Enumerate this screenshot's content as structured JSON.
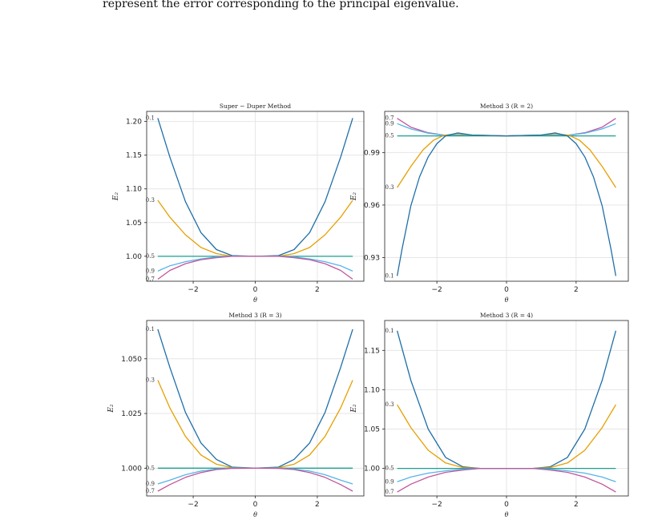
{
  "caption_text": "represent the error corresponding to the principal eigenvalue.",
  "colors": {
    "0.1": "#1f6fa8",
    "0.3": "#e69f00",
    "0.5": "#1aa08f",
    "0.7": "#c2569b",
    "0.9": "#56b4e9"
  },
  "chart_data": [
    {
      "type": "line",
      "title": "Super − Duper Method",
      "xlabel": "θ",
      "ylabel": "E₂",
      "xlim": [
        -3.5,
        3.5
      ],
      "ylim": [
        0.963,
        1.215
      ],
      "xticks": [
        -2,
        0,
        2
      ],
      "xtick_labels": [
        "−2",
        "0",
        "2"
      ],
      "yticks": [
        1.0,
        1.05,
        1.1,
        1.15,
        1.2
      ],
      "ytick_labels": [
        "1.00",
        "1.05",
        "1.10",
        "1.15",
        "1.20"
      ],
      "grid": true,
      "series": [
        {
          "name": "0.1",
          "color_key": "0.1",
          "x": [
            -3.14,
            -2.75,
            -2.25,
            -1.75,
            -1.25,
            -0.75,
            0,
            0.75,
            1.25,
            1.75,
            2.25,
            2.75,
            3.14
          ],
          "y": [
            1.205,
            1.147,
            1.081,
            1.035,
            1.01,
            1.001,
            1.0,
            1.001,
            1.01,
            1.035,
            1.081,
            1.147,
            1.205
          ]
        },
        {
          "name": "0.3",
          "color_key": "0.3",
          "x": [
            -3.14,
            -2.75,
            -2.25,
            -1.75,
            -1.25,
            -0.75,
            0,
            0.75,
            1.25,
            1.75,
            2.25,
            2.75,
            3.14
          ],
          "y": [
            1.083,
            1.058,
            1.032,
            1.013,
            1.004,
            1.0,
            1.0,
            1.0,
            1.004,
            1.013,
            1.032,
            1.058,
            1.083
          ]
        },
        {
          "name": "0.5",
          "color_key": "0.5",
          "x": [
            -3.14,
            0,
            3.14
          ],
          "y": [
            1.0,
            1.0,
            1.0
          ]
        },
        {
          "name": "0.9",
          "color_key": "0.9",
          "x": [
            -3.14,
            -2.75,
            -2.25,
            -1.75,
            -1.25,
            -0.75,
            0,
            0.75,
            1.25,
            1.75,
            2.25,
            2.75,
            3.14
          ],
          "y": [
            0.978,
            0.986,
            0.992,
            0.996,
            0.999,
            1.0,
            1.0,
            1.0,
            0.999,
            0.996,
            0.992,
            0.986,
            0.978
          ]
        },
        {
          "name": "0.7",
          "color_key": "0.7",
          "x": [
            -3.14,
            -2.75,
            -2.25,
            -1.75,
            -1.25,
            -0.75,
            0,
            0.75,
            1.25,
            1.75,
            2.25,
            2.75,
            3.14
          ],
          "y": [
            0.966,
            0.979,
            0.989,
            0.995,
            0.998,
            1.0,
            1.0,
            1.0,
            0.998,
            0.995,
            0.989,
            0.979,
            0.966
          ]
        }
      ]
    },
    {
      "type": "line",
      "title": "Method 3 (R = 2)",
      "xlabel": "θ",
      "ylabel": "E₂",
      "xlim": [
        -3.5,
        3.5
      ],
      "ylim": [
        0.9165,
        1.0135
      ],
      "xticks": [
        -2,
        0,
        2
      ],
      "xtick_labels": [
        "−2",
        "0",
        "2"
      ],
      "yticks": [
        0.93,
        0.96,
        0.99
      ],
      "ytick_labels": [
        "0.93",
        "0.96",
        "0.99"
      ],
      "grid": true,
      "series": [
        {
          "name": "0.7",
          "color_key": "0.7",
          "x": [
            -3.14,
            -2.75,
            -2.25,
            -1.75,
            -1.4,
            -1.0,
            0,
            1.0,
            1.4,
            1.75,
            2.25,
            2.75,
            3.14
          ],
          "y": [
            1.0095,
            1.0045,
            1.0013,
            0.9998,
            1.0,
            0.9998,
            0.9995,
            0.9998,
            1.0,
            0.9998,
            1.0013,
            1.0045,
            1.0095
          ]
        },
        {
          "name": "0.9",
          "color_key": "0.9",
          "x": [
            -3.14,
            -2.75,
            -2.25,
            -1.75,
            -1.4,
            -1.0,
            0,
            1.0,
            1.4,
            1.75,
            2.25,
            2.75,
            3.14
          ],
          "y": [
            1.0065,
            1.0035,
            1.001,
            0.9998,
            0.9999,
            0.9997,
            0.9995,
            0.9997,
            0.9999,
            0.9998,
            1.001,
            1.0035,
            1.0065
          ]
        },
        {
          "name": "0.5",
          "color_key": "0.5",
          "x": [
            -3.14,
            0,
            3.14
          ],
          "y": [
            0.9995,
            0.9995,
            0.9995
          ]
        },
        {
          "name": "0.3",
          "color_key": "0.3",
          "x": [
            -3.14,
            -2.75,
            -2.4,
            -2.1,
            -1.8,
            -1.4,
            -1.0,
            0,
            1.0,
            1.4,
            1.8,
            2.1,
            2.4,
            2.75,
            3.14
          ],
          "y": [
            0.97,
            0.982,
            0.9915,
            0.997,
            0.9998,
            1.0008,
            1.0,
            0.9995,
            1.0,
            1.0008,
            0.9998,
            0.997,
            0.9915,
            0.982,
            0.97
          ]
        },
        {
          "name": "0.1",
          "color_key": "0.1",
          "x": [
            -3.14,
            -3.0,
            -2.75,
            -2.5,
            -2.25,
            -2.0,
            -1.75,
            -1.4,
            -1.0,
            0,
            1.0,
            1.4,
            1.75,
            2.0,
            2.25,
            2.5,
            2.75,
            3.0,
            3.14
          ],
          "y": [
            0.9195,
            0.935,
            0.9595,
            0.976,
            0.9875,
            0.995,
            0.9995,
            1.0012,
            1.0,
            0.9995,
            1.0,
            1.0012,
            0.9995,
            0.995,
            0.9875,
            0.976,
            0.9595,
            0.935,
            0.9195
          ]
        }
      ]
    },
    {
      "type": "line",
      "title": "Method 3 (R = 3)",
      "xlabel": "θ",
      "ylabel": "E₂",
      "xlim": [
        -3.5,
        3.5
      ],
      "ylim": [
        0.9873,
        1.0675
      ],
      "xticks": [
        -2,
        0,
        2
      ],
      "xtick_labels": [
        "−2",
        "0",
        "2"
      ],
      "yticks": [
        1.0,
        1.025,
        1.05
      ],
      "ytick_labels": [
        "1.000",
        "1.025",
        "1.050"
      ],
      "grid": true,
      "series": [
        {
          "name": "0.1",
          "color_key": "0.1",
          "x": [
            -3.14,
            -2.75,
            -2.25,
            -1.75,
            -1.25,
            -0.75,
            0,
            0.75,
            1.25,
            1.75,
            2.25,
            2.75,
            3.14
          ],
          "y": [
            1.0635,
            1.046,
            1.0255,
            1.0115,
            1.004,
            1.0005,
            1.0,
            1.0005,
            1.004,
            1.0115,
            1.0255,
            1.046,
            1.0635
          ]
        },
        {
          "name": "0.3",
          "color_key": "0.3",
          "x": [
            -3.14,
            -2.75,
            -2.25,
            -1.75,
            -1.25,
            -0.75,
            0,
            0.75,
            1.25,
            1.75,
            2.25,
            2.75,
            3.14
          ],
          "y": [
            1.0402,
            1.0275,
            1.0145,
            1.006,
            1.0018,
            1.0002,
            1.0,
            1.0002,
            1.0018,
            1.006,
            1.0145,
            1.0275,
            1.0402
          ]
        },
        {
          "name": "0.5",
          "color_key": "0.5",
          "x": [
            -3.14,
            0,
            3.14
          ],
          "y": [
            1.0,
            1.0,
            1.0
          ]
        },
        {
          "name": "0.9",
          "color_key": "0.9",
          "x": [
            -3.14,
            -2.75,
            -2.25,
            -1.75,
            -1.25,
            -0.75,
            0,
            0.75,
            1.25,
            1.75,
            2.25,
            2.75,
            3.14
          ],
          "y": [
            0.9928,
            0.9945,
            0.997,
            0.9987,
            0.9996,
            1.0,
            1.0,
            1.0,
            0.9996,
            0.9987,
            0.997,
            0.9945,
            0.9928
          ]
        },
        {
          "name": "0.7",
          "color_key": "0.7",
          "x": [
            -3.14,
            -2.75,
            -2.25,
            -1.75,
            -1.25,
            -0.75,
            0,
            0.75,
            1.25,
            1.75,
            2.25,
            2.75,
            3.14
          ],
          "y": [
            0.9895,
            0.9925,
            0.9958,
            0.998,
            0.9994,
            0.9999,
            1.0,
            0.9999,
            0.9994,
            0.998,
            0.9958,
            0.9925,
            0.9895
          ]
        }
      ]
    },
    {
      "type": "line",
      "title": "Method 3 (R = 4)",
      "xlabel": "θ",
      "ylabel": "E₂",
      "xlim": [
        -3.5,
        3.5
      ],
      "ylim": [
        0.965,
        1.188
      ],
      "xticks": [
        -2,
        0,
        2
      ],
      "xtick_labels": [
        "−2",
        "0",
        "2"
      ],
      "yticks": [
        1.0,
        1.05,
        1.1,
        1.15
      ],
      "ytick_labels": [
        "1.00",
        "1.05",
        "1.10",
        "1.15"
      ],
      "grid": true,
      "series": [
        {
          "name": "0.1",
          "color_key": "0.1",
          "x": [
            -3.14,
            -2.75,
            -2.25,
            -1.75,
            -1.25,
            -0.75,
            0,
            0.75,
            1.25,
            1.75,
            2.25,
            2.75,
            3.14
          ],
          "y": [
            1.175,
            1.112,
            1.05,
            1.014,
            1.002,
            1.0,
            1.0,
            1.0,
            1.002,
            1.014,
            1.05,
            1.112,
            1.175
          ]
        },
        {
          "name": "0.3",
          "color_key": "0.3",
          "x": [
            -3.14,
            -2.75,
            -2.25,
            -1.75,
            -1.25,
            -0.75,
            0,
            0.75,
            1.25,
            1.75,
            2.25,
            2.75,
            3.14
          ],
          "y": [
            1.081,
            1.052,
            1.023,
            1.007,
            1.001,
            1.0,
            1.0,
            1.0,
            1.001,
            1.007,
            1.023,
            1.052,
            1.081
          ]
        },
        {
          "name": "0.5",
          "color_key": "0.5",
          "x": [
            -3.14,
            0,
            3.14
          ],
          "y": [
            1.0,
            1.0,
            1.0
          ]
        },
        {
          "name": "0.9",
          "color_key": "0.9",
          "x": [
            -3.14,
            -2.75,
            -2.25,
            -1.75,
            -1.25,
            -0.75,
            0,
            0.75,
            1.25,
            1.75,
            2.25,
            2.75,
            3.14
          ],
          "y": [
            0.983,
            0.989,
            0.994,
            0.997,
            0.999,
            1.0,
            1.0,
            1.0,
            0.999,
            0.997,
            0.994,
            0.989,
            0.983
          ]
        },
        {
          "name": "0.7",
          "color_key": "0.7",
          "x": [
            -3.14,
            -2.75,
            -2.25,
            -1.75,
            -1.25,
            -0.75,
            0,
            0.75,
            1.25,
            1.75,
            2.25,
            2.75,
            3.14
          ],
          "y": [
            0.97,
            0.98,
            0.989,
            0.995,
            0.998,
            1.0,
            1.0,
            1.0,
            0.998,
            0.995,
            0.989,
            0.98,
            0.97
          ]
        }
      ]
    }
  ]
}
